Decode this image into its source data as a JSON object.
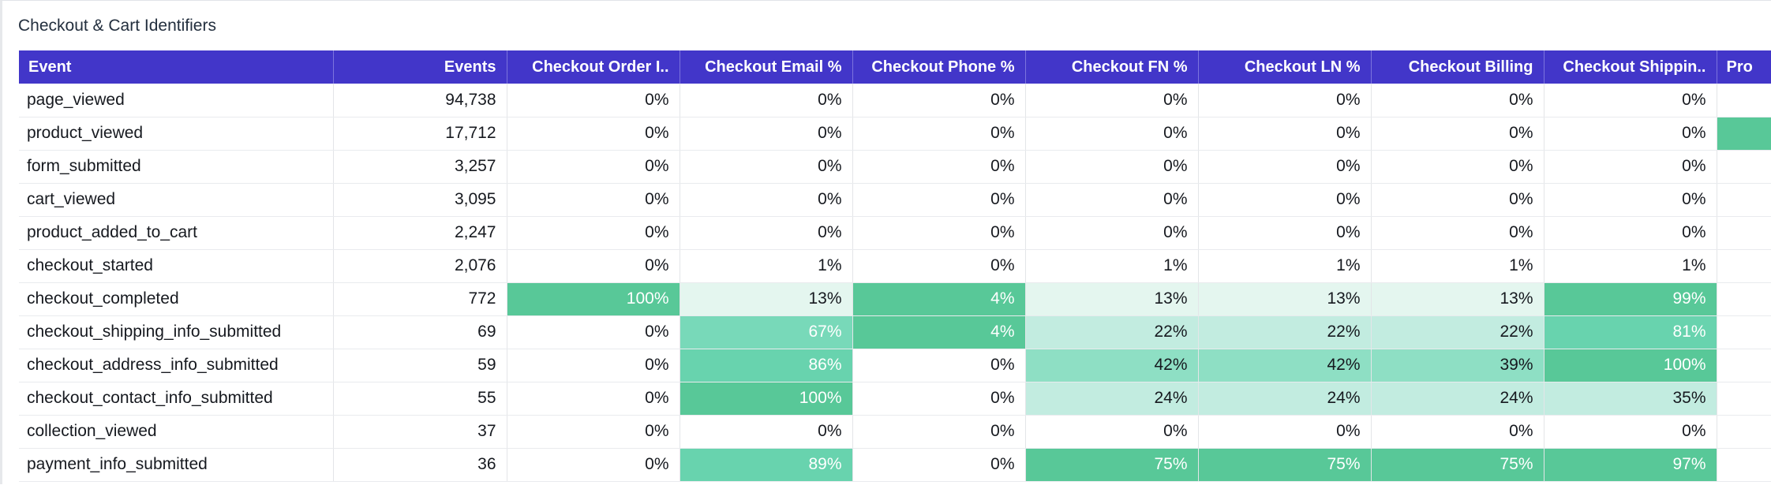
{
  "panel": {
    "title": "Checkout & Cart Identifiers"
  },
  "table": {
    "columns": [
      "Event",
      "Events",
      "Checkout Order I..",
      "Checkout Email %",
      "Checkout Phone %",
      "Checkout FN %",
      "Checkout LN %",
      "Checkout Billing",
      "Checkout Shippin..",
      "Pro"
    ],
    "heat_colors": {
      "none": "#ffffff",
      "l1": "#e4f6ef",
      "l2": "#c2ece0",
      "l3": "#8edfc4",
      "l4": "#78d9b9",
      "l5": "#68d3ae",
      "l6": "#58c898"
    },
    "rows": [
      {
        "cells": [
          "page_viewed",
          "94,738",
          "0%",
          "0%",
          "0%",
          "0%",
          "0%",
          "0%",
          "0%",
          ""
        ],
        "heat": [
          "none",
          "none",
          "none",
          "none",
          "none",
          "none",
          "none",
          "none",
          "none",
          "none"
        ]
      },
      {
        "cells": [
          "product_viewed",
          "17,712",
          "0%",
          "0%",
          "0%",
          "0%",
          "0%",
          "0%",
          "0%",
          ""
        ],
        "heat": [
          "none",
          "none",
          "none",
          "none",
          "none",
          "none",
          "none",
          "none",
          "none",
          "l6"
        ]
      },
      {
        "cells": [
          "form_submitted",
          "3,257",
          "0%",
          "0%",
          "0%",
          "0%",
          "0%",
          "0%",
          "0%",
          ""
        ],
        "heat": [
          "none",
          "none",
          "none",
          "none",
          "none",
          "none",
          "none",
          "none",
          "none",
          "none"
        ]
      },
      {
        "cells": [
          "cart_viewed",
          "3,095",
          "0%",
          "0%",
          "0%",
          "0%",
          "0%",
          "0%",
          "0%",
          ""
        ],
        "heat": [
          "none",
          "none",
          "none",
          "none",
          "none",
          "none",
          "none",
          "none",
          "none",
          "none"
        ]
      },
      {
        "cells": [
          "product_added_to_cart",
          "2,247",
          "0%",
          "0%",
          "0%",
          "0%",
          "0%",
          "0%",
          "0%",
          ""
        ],
        "heat": [
          "none",
          "none",
          "none",
          "none",
          "none",
          "none",
          "none",
          "none",
          "none",
          "none"
        ]
      },
      {
        "cells": [
          "checkout_started",
          "2,076",
          "0%",
          "1%",
          "0%",
          "1%",
          "1%",
          "1%",
          "1%",
          ""
        ],
        "heat": [
          "none",
          "none",
          "none",
          "none",
          "none",
          "none",
          "none",
          "none",
          "none",
          "none"
        ]
      },
      {
        "cells": [
          "checkout_completed",
          "772",
          "100%",
          "13%",
          "4%",
          "13%",
          "13%",
          "13%",
          "99%",
          ""
        ],
        "heat": [
          "none",
          "none",
          "l6",
          "l1",
          "l6",
          "l1",
          "l1",
          "l1",
          "l6",
          "none"
        ]
      },
      {
        "cells": [
          "checkout_shipping_info_submitted",
          "69",
          "0%",
          "67%",
          "4%",
          "22%",
          "22%",
          "22%",
          "81%",
          ""
        ],
        "heat": [
          "none",
          "none",
          "none",
          "l4",
          "l6",
          "l2",
          "l2",
          "l2",
          "l5",
          "none"
        ]
      },
      {
        "cells": [
          "checkout_address_info_submitted",
          "59",
          "0%",
          "86%",
          "0%",
          "42%",
          "42%",
          "39%",
          "100%",
          ""
        ],
        "heat": [
          "none",
          "none",
          "none",
          "l5",
          "none",
          "l3",
          "l3",
          "l3",
          "l6",
          "none"
        ]
      },
      {
        "cells": [
          "checkout_contact_info_submitted",
          "55",
          "0%",
          "100%",
          "0%",
          "24%",
          "24%",
          "24%",
          "35%",
          ""
        ],
        "heat": [
          "none",
          "none",
          "none",
          "l6",
          "none",
          "l2",
          "l2",
          "l2",
          "l2",
          "none"
        ]
      },
      {
        "cells": [
          "collection_viewed",
          "37",
          "0%",
          "0%",
          "0%",
          "0%",
          "0%",
          "0%",
          "0%",
          ""
        ],
        "heat": [
          "none",
          "none",
          "none",
          "none",
          "none",
          "none",
          "none",
          "none",
          "none",
          "none"
        ]
      },
      {
        "cells": [
          "payment_info_submitted",
          "36",
          "0%",
          "89%",
          "0%",
          "75%",
          "75%",
          "75%",
          "97%",
          ""
        ],
        "heat": [
          "none",
          "none",
          "none",
          "l5",
          "none",
          "l6",
          "l6",
          "l6",
          "l6",
          "none"
        ]
      }
    ]
  }
}
